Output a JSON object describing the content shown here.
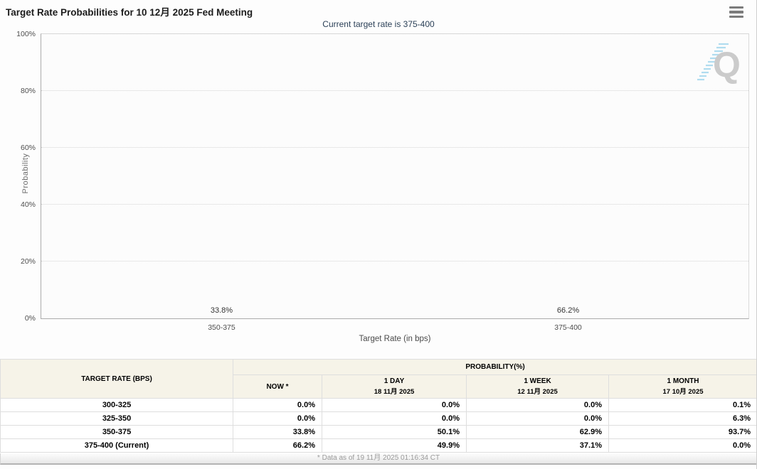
{
  "header": {
    "title": "Target Rate Probabilities for 10 12月 2025 Fed Meeting"
  },
  "subtitle": "Current target rate is 375-400",
  "chart_data": {
    "type": "bar",
    "title": "Target Rate Probabilities for 10 12月 2025 Fed Meeting",
    "categories": [
      "350-375",
      "375-400"
    ],
    "values": [
      33.8,
      66.2
    ],
    "value_labels": [
      "33.8%",
      "66.2%"
    ],
    "xlabel": "Target Rate (in bps)",
    "ylabel": "Probability",
    "ylim": [
      0,
      100
    ],
    "yticks": [
      "0%",
      "20%",
      "40%",
      "60%",
      "80%",
      "100%"
    ],
    "grid": "horizontal-dotted",
    "legend": "none",
    "bar_color": "#2b7fb8"
  },
  "watermark": {
    "letter": "Q"
  },
  "table": {
    "col1_header": "TARGET RATE (BPS)",
    "group_header": "PROBABILITY(%)",
    "columns": [
      {
        "label": "NOW *",
        "sub": ""
      },
      {
        "label": "1 DAY",
        "sub": "18 11月 2025"
      },
      {
        "label": "1 WEEK",
        "sub": "12 11月 2025"
      },
      {
        "label": "1 MONTH",
        "sub": "17 10月 2025"
      }
    ],
    "rows": [
      {
        "rate": "300-325",
        "now": "0.0%",
        "day": "0.0%",
        "week": "0.0%",
        "month": "0.1%"
      },
      {
        "rate": "325-350",
        "now": "0.0%",
        "day": "0.0%",
        "week": "0.0%",
        "month": "6.3%"
      },
      {
        "rate": "350-375",
        "now": "33.8%",
        "day": "50.1%",
        "week": "62.9%",
        "month": "93.7%"
      },
      {
        "rate": "375-400 (Current)",
        "now": "66.2%",
        "day": "49.9%",
        "week": "37.1%",
        "month": "0.0%"
      }
    ]
  },
  "footer": {
    "note": "* Data as of 19 11月 2025 01:16:34 CT"
  }
}
